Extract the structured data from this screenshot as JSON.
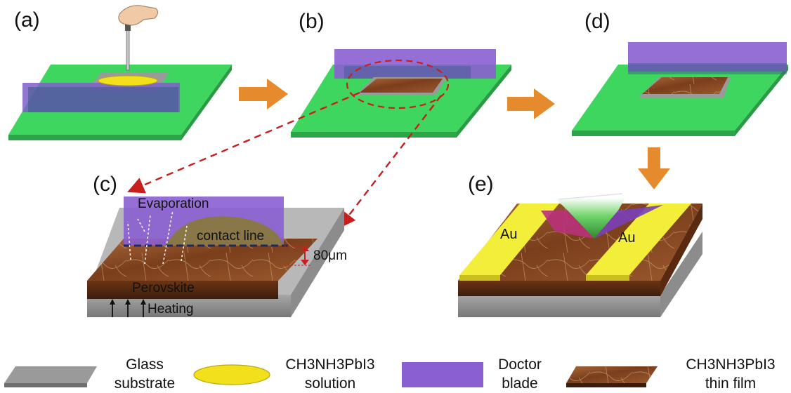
{
  "panels": {
    "a": "(a)",
    "b": "(b)",
    "c": "(c)",
    "d": "(d)",
    "e": "(e)"
  },
  "panel_c": {
    "evaporation": "Evaporation",
    "contact_line": "contact line",
    "gap": "80μm",
    "perovskite": "Perovskite",
    "heating": "Heating"
  },
  "panel_e": {
    "electrode_left": "Au",
    "electrode_right": "Au"
  },
  "legend": [
    {
      "line1": "Glass",
      "line2": "substrate"
    },
    {
      "line1": "CH3NH3PbI3",
      "line2": "solution"
    },
    {
      "line1": "Doctor",
      "line2": "blade"
    },
    {
      "line1": "CH3NH3PbI3",
      "line2": "thin film"
    }
  ],
  "colors": {
    "substrate_green": "#3fd65f",
    "doctor_blade": "#8a5fd0",
    "glass": "#9a9a9a",
    "solution": "#f2e01c",
    "film": "#8a4a22",
    "gold": "#f3ee3a",
    "arrow": "#e68a2e",
    "dashed_red": "#c81e1e"
  },
  "icons": [
    "dropper-hand-icon",
    "orange-arrow-icon",
    "red-dashed-arrow-icon",
    "light-beam-icon"
  ]
}
